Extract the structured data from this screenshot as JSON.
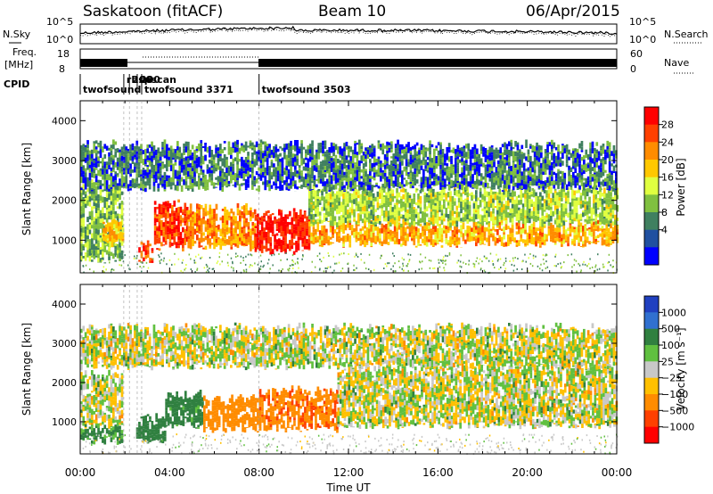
{
  "header": {
    "station": "Saskatoon (fitACF)",
    "beam": "Beam 10",
    "date": "06/Apr/2015"
  },
  "noise_panel": {
    "left_label": "N.Sky",
    "right_label": "N.Search",
    "left_ticks": [
      "10^5",
      "10^0"
    ],
    "right_ticks": [
      "10^5",
      "10^0"
    ]
  },
  "freq_panel": {
    "left_label_1": "Freq.",
    "left_label_2": "[MHz]",
    "left_ticks": [
      "18",
      "8"
    ],
    "right_label": "Nave",
    "right_ticks": [
      "60",
      "0"
    ]
  },
  "cpid": {
    "label": "CPID",
    "programs": [
      {
        "name": "twofsound",
        "start": 0.0
      },
      {
        "name": "rbspscan",
        "start": 1.95
      },
      {
        "name": "200",
        "start": 2.2
      },
      {
        "name": "200",
        "start": 2.55
      },
      {
        "name": "twofsound 3371",
        "start": 2.75
      },
      {
        "name": "twofsound 3503",
        "start": 8.0
      }
    ]
  },
  "axes": {
    "xlabel": "Time UT",
    "ylabel": "Slant Range [km]",
    "x_ticks": [
      "00:00",
      "04:00",
      "08:00",
      "12:00",
      "16:00",
      "20:00",
      "00:00"
    ],
    "y_ticks": [
      "1000",
      "2000",
      "3000",
      "4000"
    ]
  },
  "chart_data": [
    {
      "type": "heatmap",
      "name": "Power",
      "xlim": [
        0,
        24
      ],
      "ylim": [
        180,
        4500
      ],
      "colorbar": {
        "label": "Power [dB]",
        "ticks": [
          "28",
          "24",
          "20",
          "16",
          "12",
          "8",
          "4"
        ],
        "colors": [
          "#ff0000",
          "#ff4000",
          "#ff8c00",
          "#ffc800",
          "#e0ff40",
          "#80c040",
          "#408060",
          "#2050a0",
          "#0000ff"
        ]
      },
      "regions": [
        {
          "t0": 0.0,
          "t1": 1.9,
          "r0": 500,
          "r1": 2400,
          "value": 10
        },
        {
          "t0": 1.0,
          "t1": 1.9,
          "r0": 900,
          "r1": 1500,
          "value": 18
        },
        {
          "t0": 2.6,
          "t1": 3.2,
          "r0": 500,
          "r1": 900,
          "value": 26
        },
        {
          "t0": 3.3,
          "t1": 4.8,
          "r0": 800,
          "r1": 1900,
          "value": 26
        },
        {
          "t0": 4.8,
          "t1": 7.8,
          "r0": 800,
          "r1": 1800,
          "value": 22
        },
        {
          "t0": 7.8,
          "t1": 10.2,
          "r0": 700,
          "r1": 1700,
          "value": 29
        },
        {
          "t0": 10.2,
          "t1": 24.0,
          "r0": 900,
          "r1": 1400,
          "value": 20
        },
        {
          "t0": 10.2,
          "t1": 24.0,
          "r0": 1400,
          "r1": 2300,
          "value": 12
        },
        {
          "t0": 0.0,
          "t1": 24.0,
          "r0": 2300,
          "r1": 3400,
          "value": 6
        }
      ]
    },
    {
      "type": "heatmap",
      "name": "Velocity",
      "xlim": [
        0,
        24
      ],
      "ylim": [
        180,
        4500
      ],
      "colorbar": {
        "label": "Velocity [m s⁻¹]",
        "ticks": [
          "1000",
          "500",
          "100",
          "25",
          "−25",
          "−100",
          "−500",
          "−1000"
        ],
        "colors": [
          "#2040c0",
          "#3070d0",
          "#308040",
          "#60c040",
          "#c8c8c8",
          "#ffc000",
          "#ff8c00",
          "#ff4000",
          "#ff0000"
        ]
      },
      "regions": [
        {
          "t0": 0.0,
          "t1": 1.9,
          "r0": 900,
          "r1": 2200,
          "value": 0
        },
        {
          "t0": 0.0,
          "t1": 1.9,
          "r0": 500,
          "r1": 900,
          "value": 150
        },
        {
          "t0": 2.5,
          "t1": 3.8,
          "r0": 500,
          "r1": 1100,
          "value": 300
        },
        {
          "t0": 3.8,
          "t1": 5.5,
          "r0": 900,
          "r1": 1700,
          "value": 200
        },
        {
          "t0": 5.5,
          "t1": 8.0,
          "r0": 800,
          "r1": 1600,
          "value": -300
        },
        {
          "t0": 8.0,
          "t1": 11.5,
          "r0": 800,
          "r1": 1800,
          "value": -450
        },
        {
          "t0": 11.5,
          "t1": 24.0,
          "r0": 900,
          "r1": 2400,
          "value": 0
        },
        {
          "t0": 0.0,
          "t1": 24.0,
          "r0": 2400,
          "r1": 3400,
          "value": 0
        }
      ]
    }
  ]
}
